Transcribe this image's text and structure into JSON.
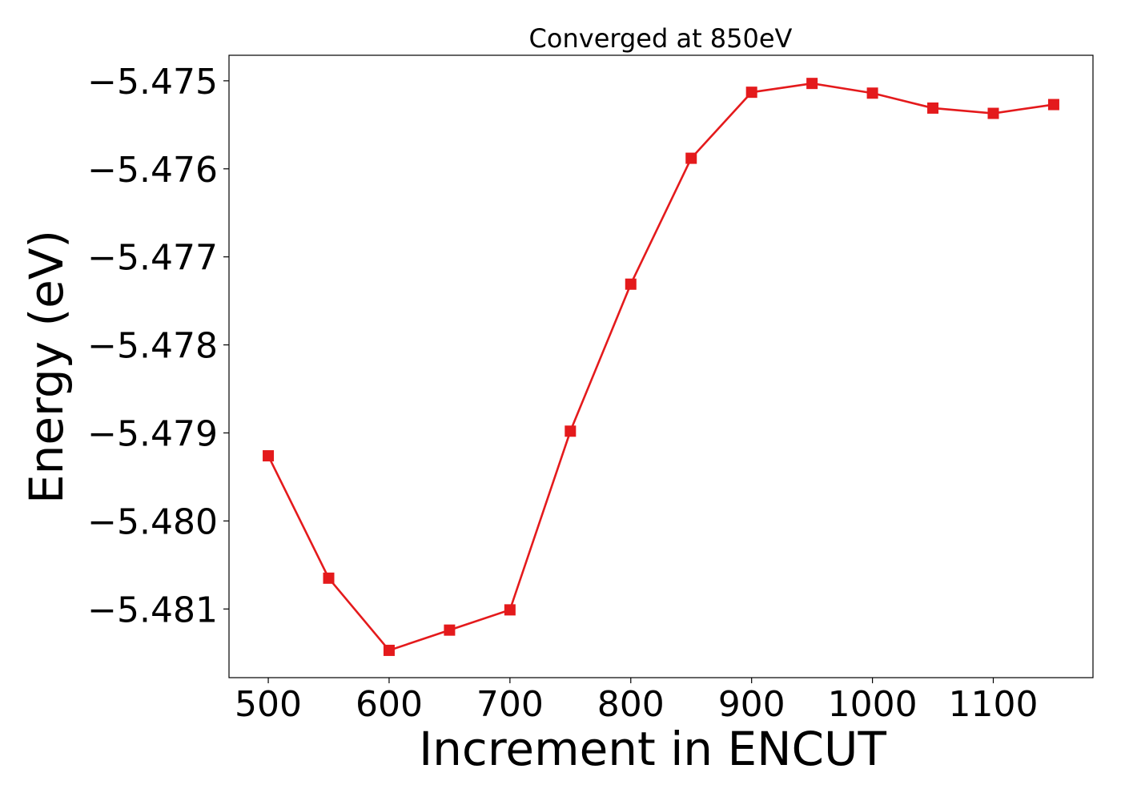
{
  "chart_data": {
    "type": "line",
    "title": "Converged at 850eV",
    "xlabel": "Increment in ENCUT",
    "ylabel": "Energy (eV)",
    "x": [
      500,
      550,
      600,
      650,
      700,
      750,
      800,
      850,
      900,
      950,
      1000,
      1050,
      1100,
      1150
    ],
    "series": [
      {
        "values": [
          -5.47926,
          -5.48065,
          -5.48147,
          -5.48124,
          -5.48101,
          -5.47898,
          -5.47731,
          -5.47588,
          -5.47513,
          -5.47503,
          -5.47514,
          -5.47531,
          -5.47537,
          -5.47527
        ]
      }
    ],
    "xlim": [
      467.5,
      1182.5
    ],
    "ylim": [
      -5.48178,
      -5.47471
    ],
    "xticks": [
      500,
      600,
      700,
      800,
      900,
      1000,
      1100
    ],
    "xtick_labels": [
      "500",
      "600",
      "700",
      "800",
      "900",
      "1000",
      "1100"
    ],
    "yticks": [
      -5.475,
      -5.476,
      -5.477,
      -5.478,
      -5.479,
      -5.48,
      -5.481
    ],
    "ytick_labels": [
      "−5.475",
      "−5.476",
      "−5.477",
      "−5.478",
      "−5.479",
      "−5.480",
      "−5.481"
    ],
    "grid": false,
    "colors": {
      "line": "#e41a1c",
      "marker": "#e41a1c",
      "axes": "#000000"
    },
    "marker": "square"
  }
}
